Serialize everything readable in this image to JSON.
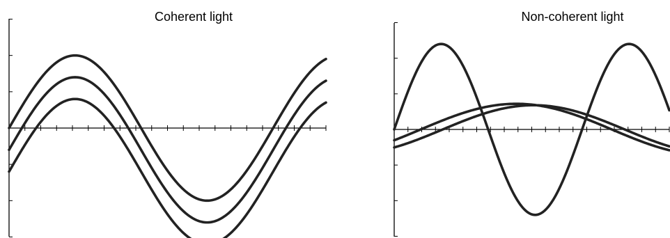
{
  "chart_data": [
    {
      "type": "line",
      "title": "Coherent light",
      "xlabel": "",
      "ylabel": "",
      "grid": false,
      "legend": "none",
      "xlim": [
        0,
        1.2
      ],
      "ylim": [
        -3,
        3
      ],
      "series": [
        {
          "frequency": 1,
          "amplitude": 2.0,
          "phase_deg": 0,
          "offset": 0.0
        },
        {
          "frequency": 1,
          "amplitude": 2.0,
          "phase_deg": 0,
          "offset": -0.6
        },
        {
          "frequency": 1,
          "amplitude": 2.0,
          "phase_deg": 0,
          "offset": -1.2
        }
      ]
    },
    {
      "type": "line",
      "title": "Non-coherent light",
      "xlabel": "",
      "ylabel": "",
      "grid": false,
      "legend": "none",
      "xlim": [
        0,
        1.2
      ],
      "ylim": [
        -3,
        3
      ],
      "series": [
        {
          "frequency": 1.22,
          "amplitude": 2.4,
          "phase_deg": 0,
          "offset": 0.0
        },
        {
          "frequency": 0.6,
          "amplitude": 0.72,
          "phase_deg": -25,
          "offset": 0.0
        },
        {
          "frequency": 0.63,
          "amplitude": 0.68,
          "phase_deg": -48,
          "offset": 0.0
        }
      ]
    }
  ]
}
